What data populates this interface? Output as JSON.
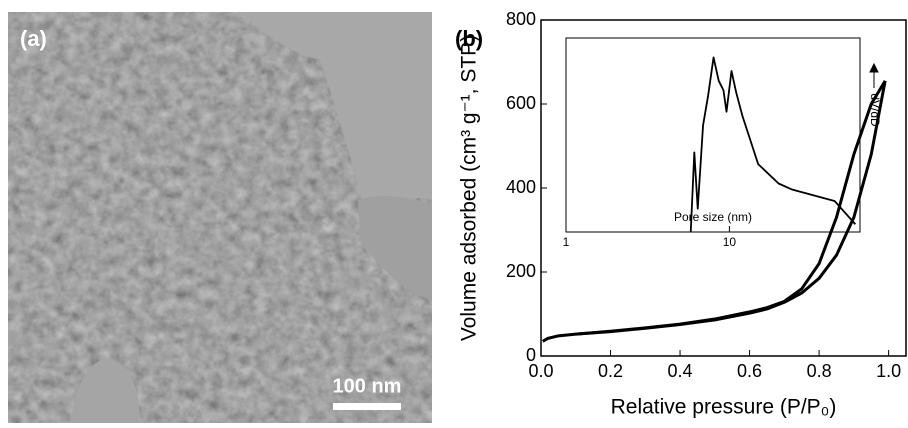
{
  "image_panel": {
    "label": "(a)",
    "scale_bar": "100 nm"
  },
  "chart_data": [
    {
      "type": "line",
      "label": "(b)",
      "xlabel": "Relative pressure (P/P₀)",
      "ylabel": "Volume adsorbed (cm³ g⁻¹, STP)",
      "xlim": [
        0,
        1.05
      ],
      "ylim": [
        0,
        800
      ],
      "xticks": [
        {
          "value": 0,
          "label": "0.0"
        },
        {
          "value": 0.2,
          "label": "0.2"
        },
        {
          "value": 0.4,
          "label": "0.4"
        },
        {
          "value": 0.6,
          "label": "0.6"
        },
        {
          "value": 0.8,
          "label": "0.8"
        },
        {
          "value": 1,
          "label": "1.0"
        }
      ],
      "yticks": [
        0,
        200,
        400,
        600,
        800
      ],
      "series": [
        {
          "color": "#000000",
          "x": [
            0.005,
            0.02,
            0.05,
            0.1,
            0.2,
            0.3,
            0.4,
            0.5,
            0.6,
            0.65,
            0.7,
            0.75,
            0.8,
            0.85,
            0.9,
            0.95,
            0.99
          ],
          "values": [
            35,
            42,
            48,
            52,
            58,
            66,
            75,
            86,
            102,
            112,
            128,
            150,
            185,
            240,
            330,
            480,
            655
          ]
        },
        {
          "color": "#000000",
          "x": [
            0.99,
            0.95,
            0.9,
            0.85,
            0.8,
            0.75,
            0.7,
            0.65,
            0.6,
            0.5,
            0.4,
            0.3,
            0.2,
            0.1
          ],
          "values": [
            655,
            600,
            480,
            330,
            220,
            160,
            130,
            115,
            105,
            88,
            76,
            67,
            59,
            52
          ]
        }
      ]
    },
    {
      "type": "line",
      "xlabel": "Pore size (nm)",
      "ylabel": "dV/dD",
      "log_x": true,
      "xlim": [
        1,
        63
      ],
      "ylim": [
        0,
        1
      ],
      "xticks": [
        1,
        10
      ],
      "series": [
        {
          "color": "#000000",
          "x": [
            5.8,
            6.1,
            6.4,
            6.9,
            7.4,
            8.0,
            8.6,
            9.2,
            9.6,
            10.3,
            11,
            12,
            15,
            20,
            24,
            44,
            59
          ],
          "values": [
            0,
            0.41,
            0.12,
            0.55,
            0.7,
            0.9,
            0.78,
            0.73,
            0.62,
            0.83,
            0.72,
            0.6,
            0.35,
            0.25,
            0.22,
            0.16,
            0.04
          ]
        }
      ]
    }
  ]
}
